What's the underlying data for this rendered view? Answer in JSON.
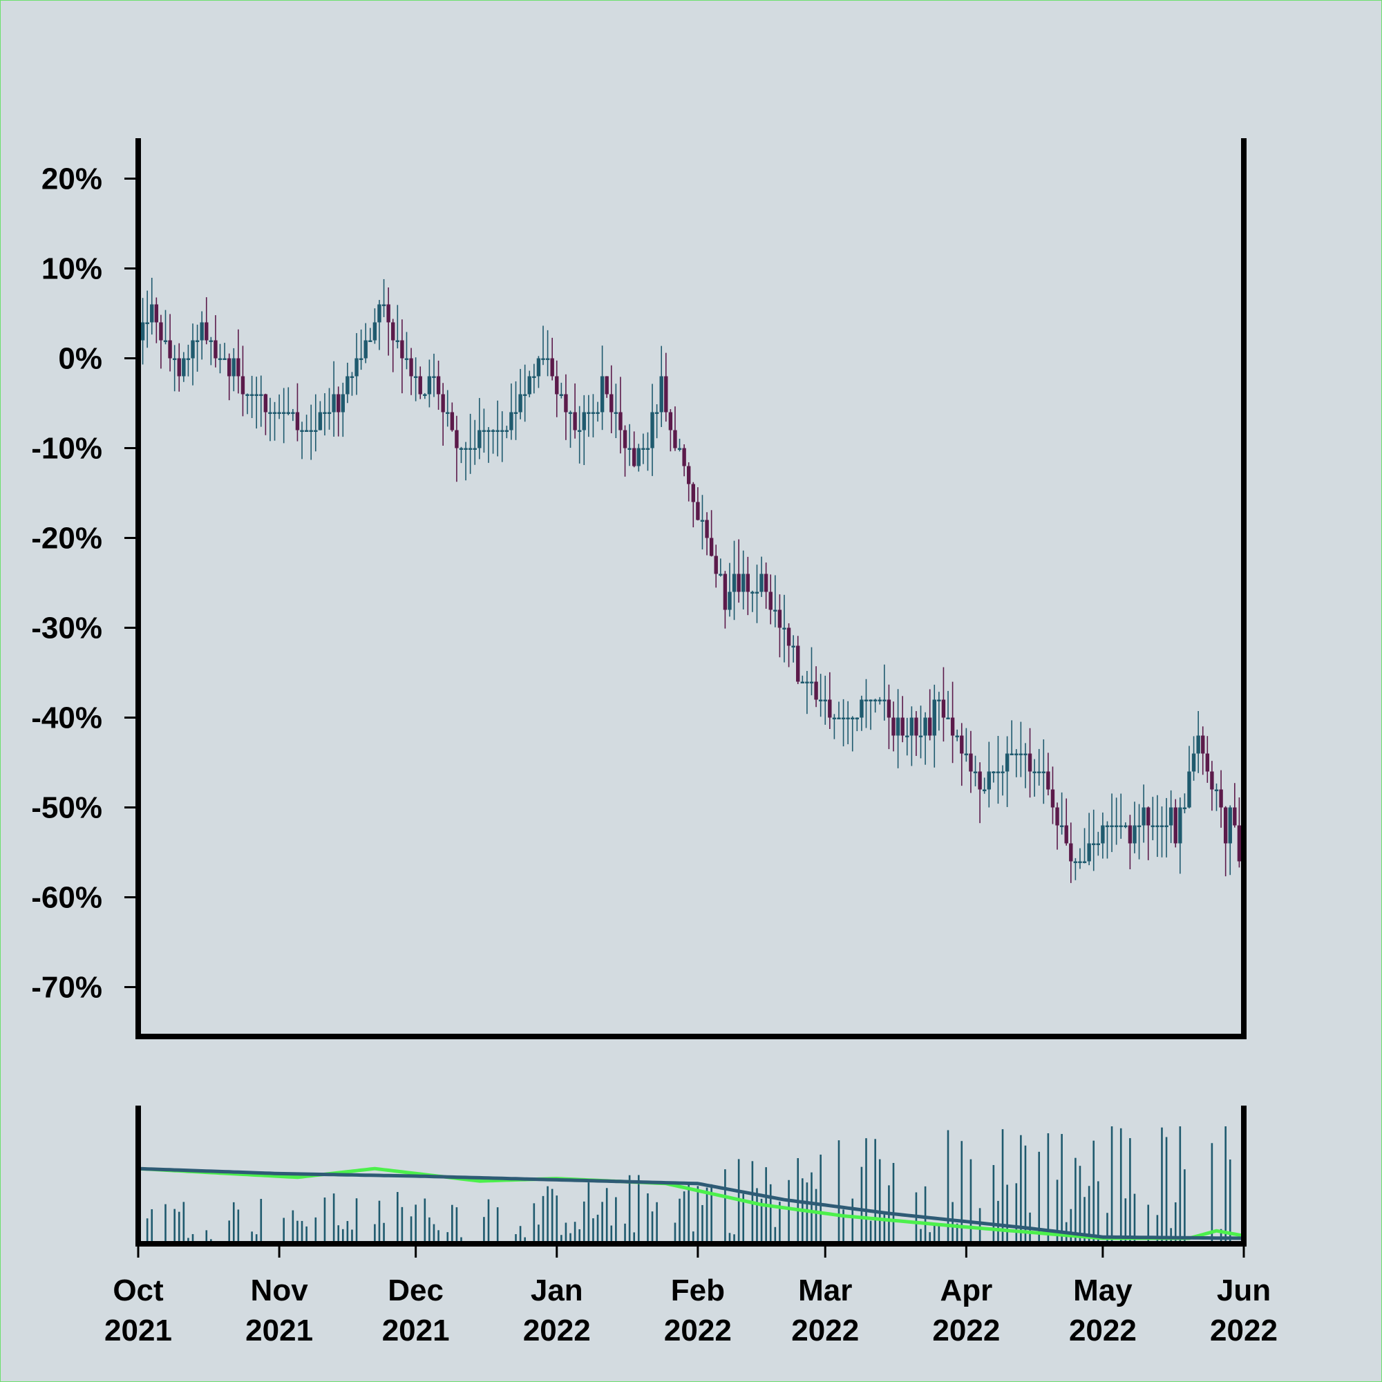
{
  "chart_data": [
    {
      "type": "candlestick",
      "role": "price",
      "title": "",
      "xlabel": "",
      "ylabel": "",
      "y_tick_labels": [
        "20%",
        "10%",
        "0%",
        "-10%",
        "-20%",
        "-30%",
        "-40%",
        "-50%",
        "-60%",
        "-70%"
      ],
      "y_ticks": [
        20,
        10,
        0,
        -10,
        -20,
        -30,
        -40,
        -50,
        -60,
        -70
      ],
      "ylim": [
        -75.5,
        24.5
      ],
      "xlim": [
        "2021-10-01",
        "2022-06-01"
      ],
      "grid": false,
      "colors": {
        "up": "#1f5a6e",
        "down": "#5b1a4a",
        "axis": "#000000"
      },
      "close_path": [
        [
          "2021-10-01",
          2
        ],
        [
          "2021-10-04",
          5
        ],
        [
          "2021-10-10",
          -2
        ],
        [
          "2021-10-15",
          3
        ],
        [
          "2021-10-25",
          -4
        ],
        [
          "2021-11-01",
          -6
        ],
        [
          "2021-11-08",
          -8
        ],
        [
          "2021-11-14",
          -4
        ],
        [
          "2021-11-24",
          5
        ],
        [
          "2021-12-02",
          -4
        ],
        [
          "2021-12-05",
          -2
        ],
        [
          "2021-12-10",
          -10
        ],
        [
          "2021-12-20",
          -8
        ],
        [
          "2021-12-29",
          0
        ],
        [
          "2022-01-05",
          -8
        ],
        [
          "2022-01-12",
          -4
        ],
        [
          "2022-01-18",
          -12
        ],
        [
          "2022-01-24",
          -4
        ],
        [
          "2022-02-01",
          -18
        ],
        [
          "2022-02-08",
          -27
        ],
        [
          "2022-02-15",
          -25
        ],
        [
          "2022-02-25",
          -36
        ],
        [
          "2022-03-05",
          -41
        ],
        [
          "2022-03-12",
          -37
        ],
        [
          "2022-03-20",
          -43
        ],
        [
          "2022-03-26",
          -38
        ],
        [
          "2022-04-04",
          -48
        ],
        [
          "2022-04-12",
          -44
        ],
        [
          "2022-04-18",
          -47
        ],
        [
          "2022-04-25",
          -57
        ],
        [
          "2022-05-02",
          -52
        ],
        [
          "2022-05-10",
          -51
        ],
        [
          "2022-05-16",
          -53
        ],
        [
          "2022-05-22",
          -43
        ],
        [
          "2022-06-01",
          -57
        ]
      ]
    },
    {
      "type": "bar",
      "role": "volume",
      "x_tick_labels": [
        [
          "Oct",
          "2021"
        ],
        [
          "Nov",
          "2021"
        ],
        [
          "Dec",
          "2021"
        ],
        [
          "Jan",
          "2022"
        ],
        [
          "Feb",
          "2022"
        ],
        [
          "Mar",
          "2022"
        ],
        [
          "Apr",
          "2022"
        ],
        [
          "May",
          "2022"
        ],
        [
          "Jun",
          "2022"
        ]
      ],
      "x_ticks": [
        "2021-10-01",
        "2021-11-01",
        "2021-12-01",
        "2022-01-01",
        "2022-02-01",
        "2022-03-01",
        "2022-04-01",
        "2022-05-01",
        "2022-06-01"
      ],
      "volume_level_by_month": [
        [
          "2021-10-01",
          0.25
        ],
        [
          "2021-11-01",
          0.27
        ],
        [
          "2021-12-01",
          0.3
        ],
        [
          "2022-01-01",
          0.33
        ],
        [
          "2022-02-01",
          0.45
        ],
        [
          "2022-03-01",
          0.62
        ],
        [
          "2022-04-01",
          0.65
        ],
        [
          "2022-05-01",
          0.7
        ],
        [
          "2022-06-01",
          0.7
        ]
      ],
      "overlays": [
        {
          "color": "#4cf04c",
          "path": [
            [
              "2021-10-01",
              0.56
            ],
            [
              "2021-11-05",
              0.49
            ],
            [
              "2021-11-22",
              0.56
            ],
            [
              "2021-12-15",
              0.46
            ],
            [
              "2022-01-01",
              0.48
            ],
            [
              "2022-01-25",
              0.44
            ],
            [
              "2022-02-15",
              0.27
            ],
            [
              "2022-03-05",
              0.18
            ],
            [
              "2022-04-01",
              0.09
            ],
            [
              "2022-05-01",
              0.0
            ],
            [
              "2022-05-20",
              0.0
            ],
            [
              "2022-05-26",
              0.06
            ],
            [
              "2022-06-01",
              0.02
            ]
          ]
        },
        {
          "color": "#2e5b75",
          "path": [
            [
              "2021-10-01",
              0.56
            ],
            [
              "2021-11-01",
              0.52
            ],
            [
              "2021-12-01",
              0.5
            ],
            [
              "2022-01-01",
              0.47
            ],
            [
              "2022-02-01",
              0.44
            ],
            [
              "2022-02-20",
              0.31
            ],
            [
              "2022-03-15",
              0.2
            ],
            [
              "2022-04-15",
              0.08
            ],
            [
              "2022-05-01",
              0.01
            ],
            [
              "2022-06-01",
              0.0
            ]
          ]
        }
      ]
    }
  ]
}
